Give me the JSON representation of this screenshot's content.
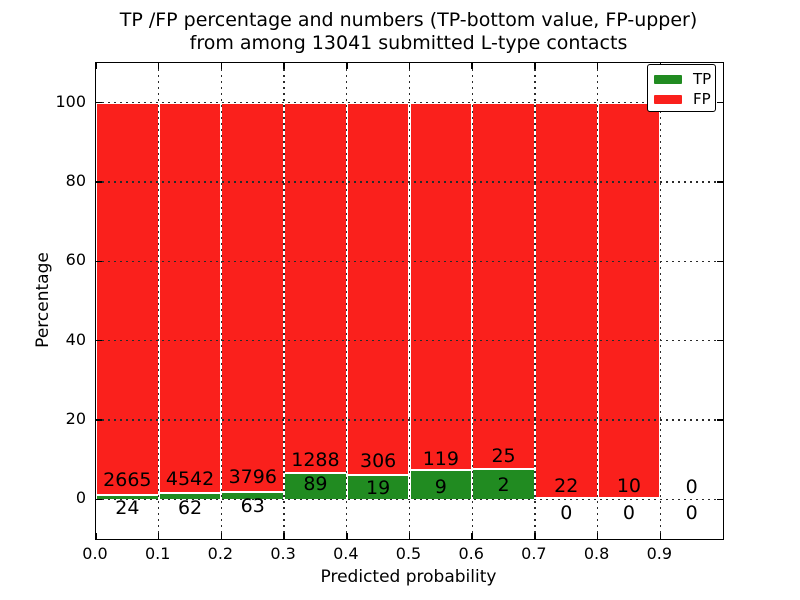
{
  "title": {
    "line1": "TP /FP percentage and numbers (TP-bottom value, FP-upper)",
    "line2": "from among 13041 submitted L-type contacts"
  },
  "axes": {
    "xlabel": "Predicted probability",
    "ylabel": "Percentage",
    "yticks": [
      0,
      20,
      40,
      60,
      80,
      100
    ],
    "xtick_labels": [
      "0.0",
      "0.1",
      "0.2",
      "0.3",
      "0.4",
      "0.5",
      "0.6",
      "0.7",
      "0.8",
      "0.9"
    ],
    "xlim": [
      0.0,
      1.0
    ],
    "ylim": [
      -10,
      110
    ],
    "grid": "dotted"
  },
  "legend": {
    "position": "upper-right",
    "items": [
      {
        "label": "TP",
        "color_key": "tp"
      },
      {
        "label": "FP",
        "color_key": "fp"
      }
    ]
  },
  "colors": {
    "tp": "#218b21",
    "fp": "#fa201c",
    "grid": "#2b2b2b",
    "text": "#000000",
    "background": "#ffffff"
  },
  "chart_data": {
    "type": "bar",
    "stacked": true,
    "normalized_to_percent": true,
    "title": "TP /FP percentage and numbers (TP-bottom value, FP-upper) from among 13041 submitted L-type contacts",
    "xlabel": "Predicted probability",
    "ylabel": "Percentage",
    "total_contacts": 13041,
    "categories": [
      "0.0-0.1",
      "0.1-0.2",
      "0.2-0.3",
      "0.3-0.4",
      "0.4-0.5",
      "0.5-0.6",
      "0.6-0.7",
      "0.7-0.8",
      "0.8-0.9",
      "0.9-1.0"
    ],
    "series": [
      {
        "name": "TP",
        "values": [
          24,
          62,
          63,
          89,
          19,
          9,
          2,
          0,
          0,
          0
        ]
      },
      {
        "name": "FP",
        "values": [
          2665,
          4542,
          3796,
          1288,
          306,
          119,
          25,
          22,
          10,
          0
        ]
      }
    ],
    "bars": [
      {
        "range": "0.0-0.1",
        "tp": 24,
        "fp": 2665,
        "tp_pct": 0.89,
        "fp_label_y": 4.9,
        "tp_label_y": -2.2
      },
      {
        "range": "0.1-0.2",
        "tp": 62,
        "fp": 4542,
        "tp_pct": 1.35,
        "fp_label_y": 5.1,
        "tp_label_y": -2.2
      },
      {
        "range": "0.2-0.3",
        "tp": 63,
        "fp": 3796,
        "tp_pct": 1.63,
        "fp_label_y": 5.6,
        "tp_label_y": -1.6
      },
      {
        "range": "0.3-0.4",
        "tp": 89,
        "fp": 1288,
        "tp_pct": 6.46,
        "fp_label_y": 9.8,
        "tp_label_y": 3.9
      },
      {
        "range": "0.4-0.5",
        "tp": 19,
        "fp": 306,
        "tp_pct": 5.85,
        "fp_label_y": 9.7,
        "tp_label_y": 2.8
      },
      {
        "range": "0.5-0.6",
        "tp": 9,
        "fp": 119,
        "tp_pct": 7.03,
        "fp_label_y": 10.2,
        "tp_label_y": 3.1
      },
      {
        "range": "0.6-0.7",
        "tp": 2,
        "fp": 25,
        "tp_pct": 7.41,
        "fp_label_y": 10.9,
        "tp_label_y": 3.6
      },
      {
        "range": "0.7-0.8",
        "tp": 0,
        "fp": 22,
        "tp_pct": 0,
        "fp_label_y": 3.3,
        "tp_label_y": -3.4
      },
      {
        "range": "0.8-0.9",
        "tp": 0,
        "fp": 10,
        "tp_pct": 0,
        "fp_label_y": 3.3,
        "tp_label_y": -3.4
      },
      {
        "range": "0.9-1.0",
        "tp": 0,
        "fp": 0,
        "tp_pct": 0,
        "fp_label_y": 3.0,
        "tp_label_y": -3.4
      }
    ]
  }
}
